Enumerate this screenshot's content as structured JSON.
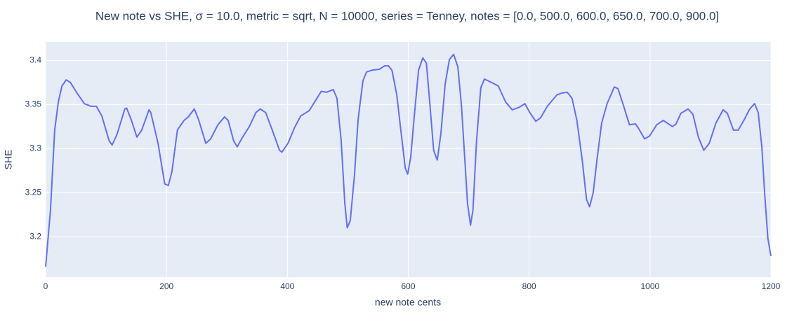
{
  "chart_data": {
    "type": "line",
    "title": "New note vs SHE, σ = 10.0, metric = sqrt, N = 10000, series = Tenney, notes = [0.0, 500.0, 600.0, 650.0, 700.0, 900.0]",
    "x_label": "new note cents",
    "y_label": "SHE",
    "xlim": [
      0,
      1200
    ],
    "xticks": [
      0,
      200,
      400,
      600,
      800,
      1000,
      1200
    ],
    "ylim": [
      3.154,
      3.421
    ],
    "yticks": [
      3.2,
      3.25,
      3.3,
      3.35,
      3.4
    ],
    "grid": true,
    "x": [
      0,
      8,
      15,
      21,
      27,
      34,
      41,
      52,
      64,
      75,
      84,
      93,
      105,
      110,
      118,
      131,
      134,
      142,
      151,
      159,
      171,
      174,
      186,
      197,
      203,
      209,
      218,
      229,
      236,
      246,
      253,
      265,
      273,
      285,
      296,
      302,
      311,
      317,
      325,
      337,
      348,
      355,
      364,
      375,
      387,
      391,
      401,
      412,
      422,
      436,
      447,
      456,
      465,
      476,
      482,
      489,
      495,
      499,
      504,
      511,
      517,
      525,
      531,
      540,
      552,
      561,
      567,
      573,
      581,
      587,
      595,
      599,
      604,
      610,
      617,
      624,
      630,
      635,
      642,
      648,
      654,
      661,
      668,
      675,
      682,
      688,
      693,
      698,
      703,
      707,
      713,
      720,
      726,
      738,
      749,
      761,
      772,
      784,
      793,
      801,
      811,
      819,
      830,
      846,
      854,
      863,
      871,
      879,
      888,
      895,
      900,
      906,
      912,
      920,
      929,
      941,
      947,
      956,
      966,
      976,
      981,
      991,
      999,
      1011,
      1022,
      1037,
      1043,
      1051,
      1063,
      1071,
      1080,
      1089,
      1098,
      1109,
      1121,
      1128,
      1138,
      1146,
      1156,
      1165,
      1173,
      1179,
      1185,
      1190,
      1195,
      1200
    ],
    "series": [
      {
        "name": "SHE",
        "color": "#636efa",
        "values": [
          3.166,
          3.23,
          3.321,
          3.353,
          3.371,
          3.378,
          3.375,
          3.363,
          3.351,
          3.348,
          3.348,
          3.337,
          3.309,
          3.304,
          3.316,
          3.345,
          3.346,
          3.332,
          3.313,
          3.321,
          3.344,
          3.341,
          3.306,
          3.26,
          3.258,
          3.274,
          3.321,
          3.332,
          3.336,
          3.345,
          3.333,
          3.306,
          3.311,
          3.327,
          3.336,
          3.332,
          3.309,
          3.302,
          3.312,
          3.325,
          3.341,
          3.345,
          3.341,
          3.321,
          3.298,
          3.296,
          3.306,
          3.324,
          3.337,
          3.343,
          3.355,
          3.365,
          3.364,
          3.367,
          3.357,
          3.309,
          3.238,
          3.21,
          3.218,
          3.27,
          3.333,
          3.377,
          3.387,
          3.389,
          3.39,
          3.394,
          3.394,
          3.389,
          3.361,
          3.325,
          3.278,
          3.271,
          3.29,
          3.337,
          3.389,
          3.403,
          3.397,
          3.357,
          3.298,
          3.287,
          3.317,
          3.373,
          3.401,
          3.407,
          3.393,
          3.349,
          3.294,
          3.238,
          3.213,
          3.23,
          3.309,
          3.369,
          3.379,
          3.375,
          3.371,
          3.353,
          3.344,
          3.347,
          3.351,
          3.341,
          3.331,
          3.335,
          3.348,
          3.361,
          3.363,
          3.364,
          3.357,
          3.332,
          3.286,
          3.242,
          3.234,
          3.25,
          3.286,
          3.329,
          3.351,
          3.37,
          3.368,
          3.349,
          3.327,
          3.328,
          3.323,
          3.311,
          3.314,
          3.327,
          3.332,
          3.325,
          3.328,
          3.34,
          3.345,
          3.339,
          3.313,
          3.298,
          3.306,
          3.329,
          3.344,
          3.34,
          3.321,
          3.321,
          3.333,
          3.345,
          3.351,
          3.341,
          3.302,
          3.246,
          3.198,
          3.178
        ]
      }
    ]
  }
}
